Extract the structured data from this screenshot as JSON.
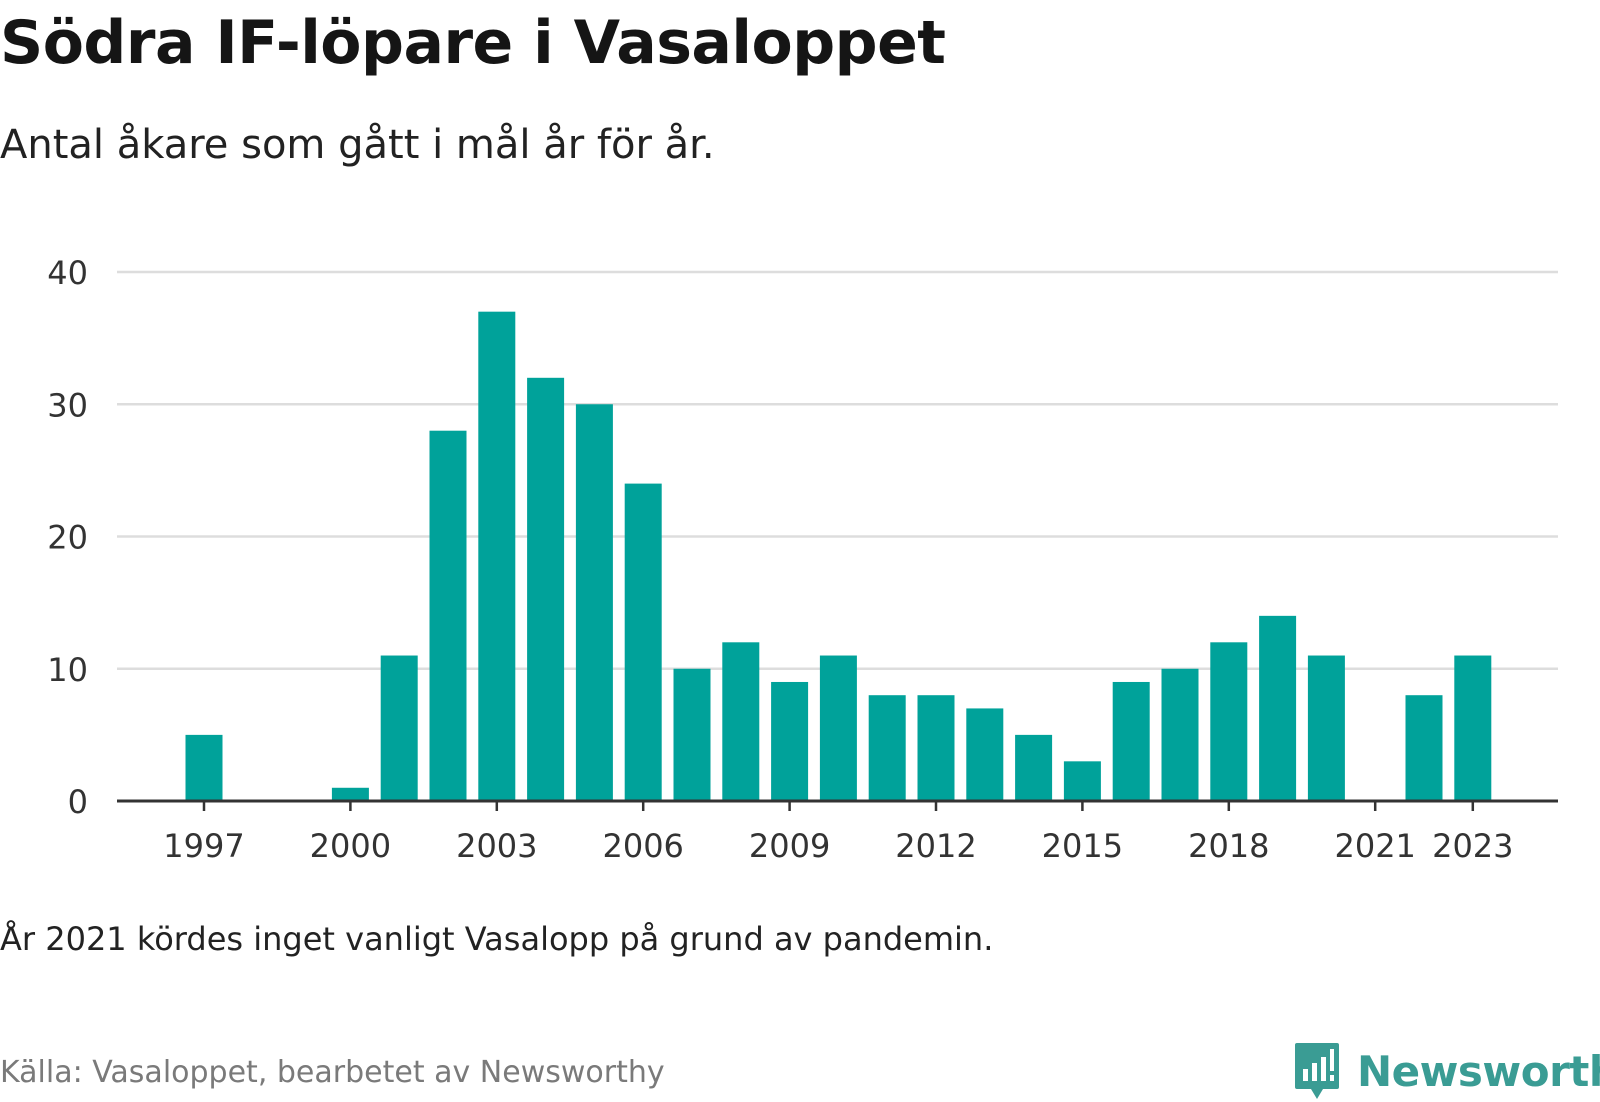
{
  "header": {
    "title": "Södra IF-löpare i Vasaloppet",
    "subtitle": "Antal åkare som gått i mål år för år."
  },
  "footer": {
    "note": "År 2021 kördes inget vanligt Vasalopp på grund av pandemin.",
    "source": "Källa: Vasaloppet, bearbetet av Newsworthy",
    "brand": "Newsworthy"
  },
  "colors": {
    "bar": "#00a29a",
    "grid": "#dddddd",
    "axis": "#333333",
    "brand": "#3a9c94"
  },
  "chart_data": {
    "type": "bar",
    "categories": [
      1997,
      1998,
      1999,
      2000,
      2001,
      2002,
      2003,
      2004,
      2005,
      2006,
      2007,
      2008,
      2009,
      2010,
      2011,
      2012,
      2013,
      2014,
      2015,
      2016,
      2017,
      2018,
      2019,
      2020,
      2021,
      2022,
      2023
    ],
    "values": [
      5,
      0,
      0,
      1,
      11,
      28,
      37,
      32,
      30,
      24,
      10,
      12,
      9,
      11,
      8,
      8,
      7,
      5,
      3,
      9,
      10,
      12,
      14,
      11,
      0,
      8,
      11
    ],
    "x_ticks": [
      1997,
      2000,
      2003,
      2006,
      2009,
      2012,
      2015,
      2018,
      2021,
      2023
    ],
    "y_ticks": [
      0,
      10,
      20,
      30,
      40
    ],
    "ylim": [
      0,
      40
    ],
    "grid": true,
    "legend": "none"
  }
}
